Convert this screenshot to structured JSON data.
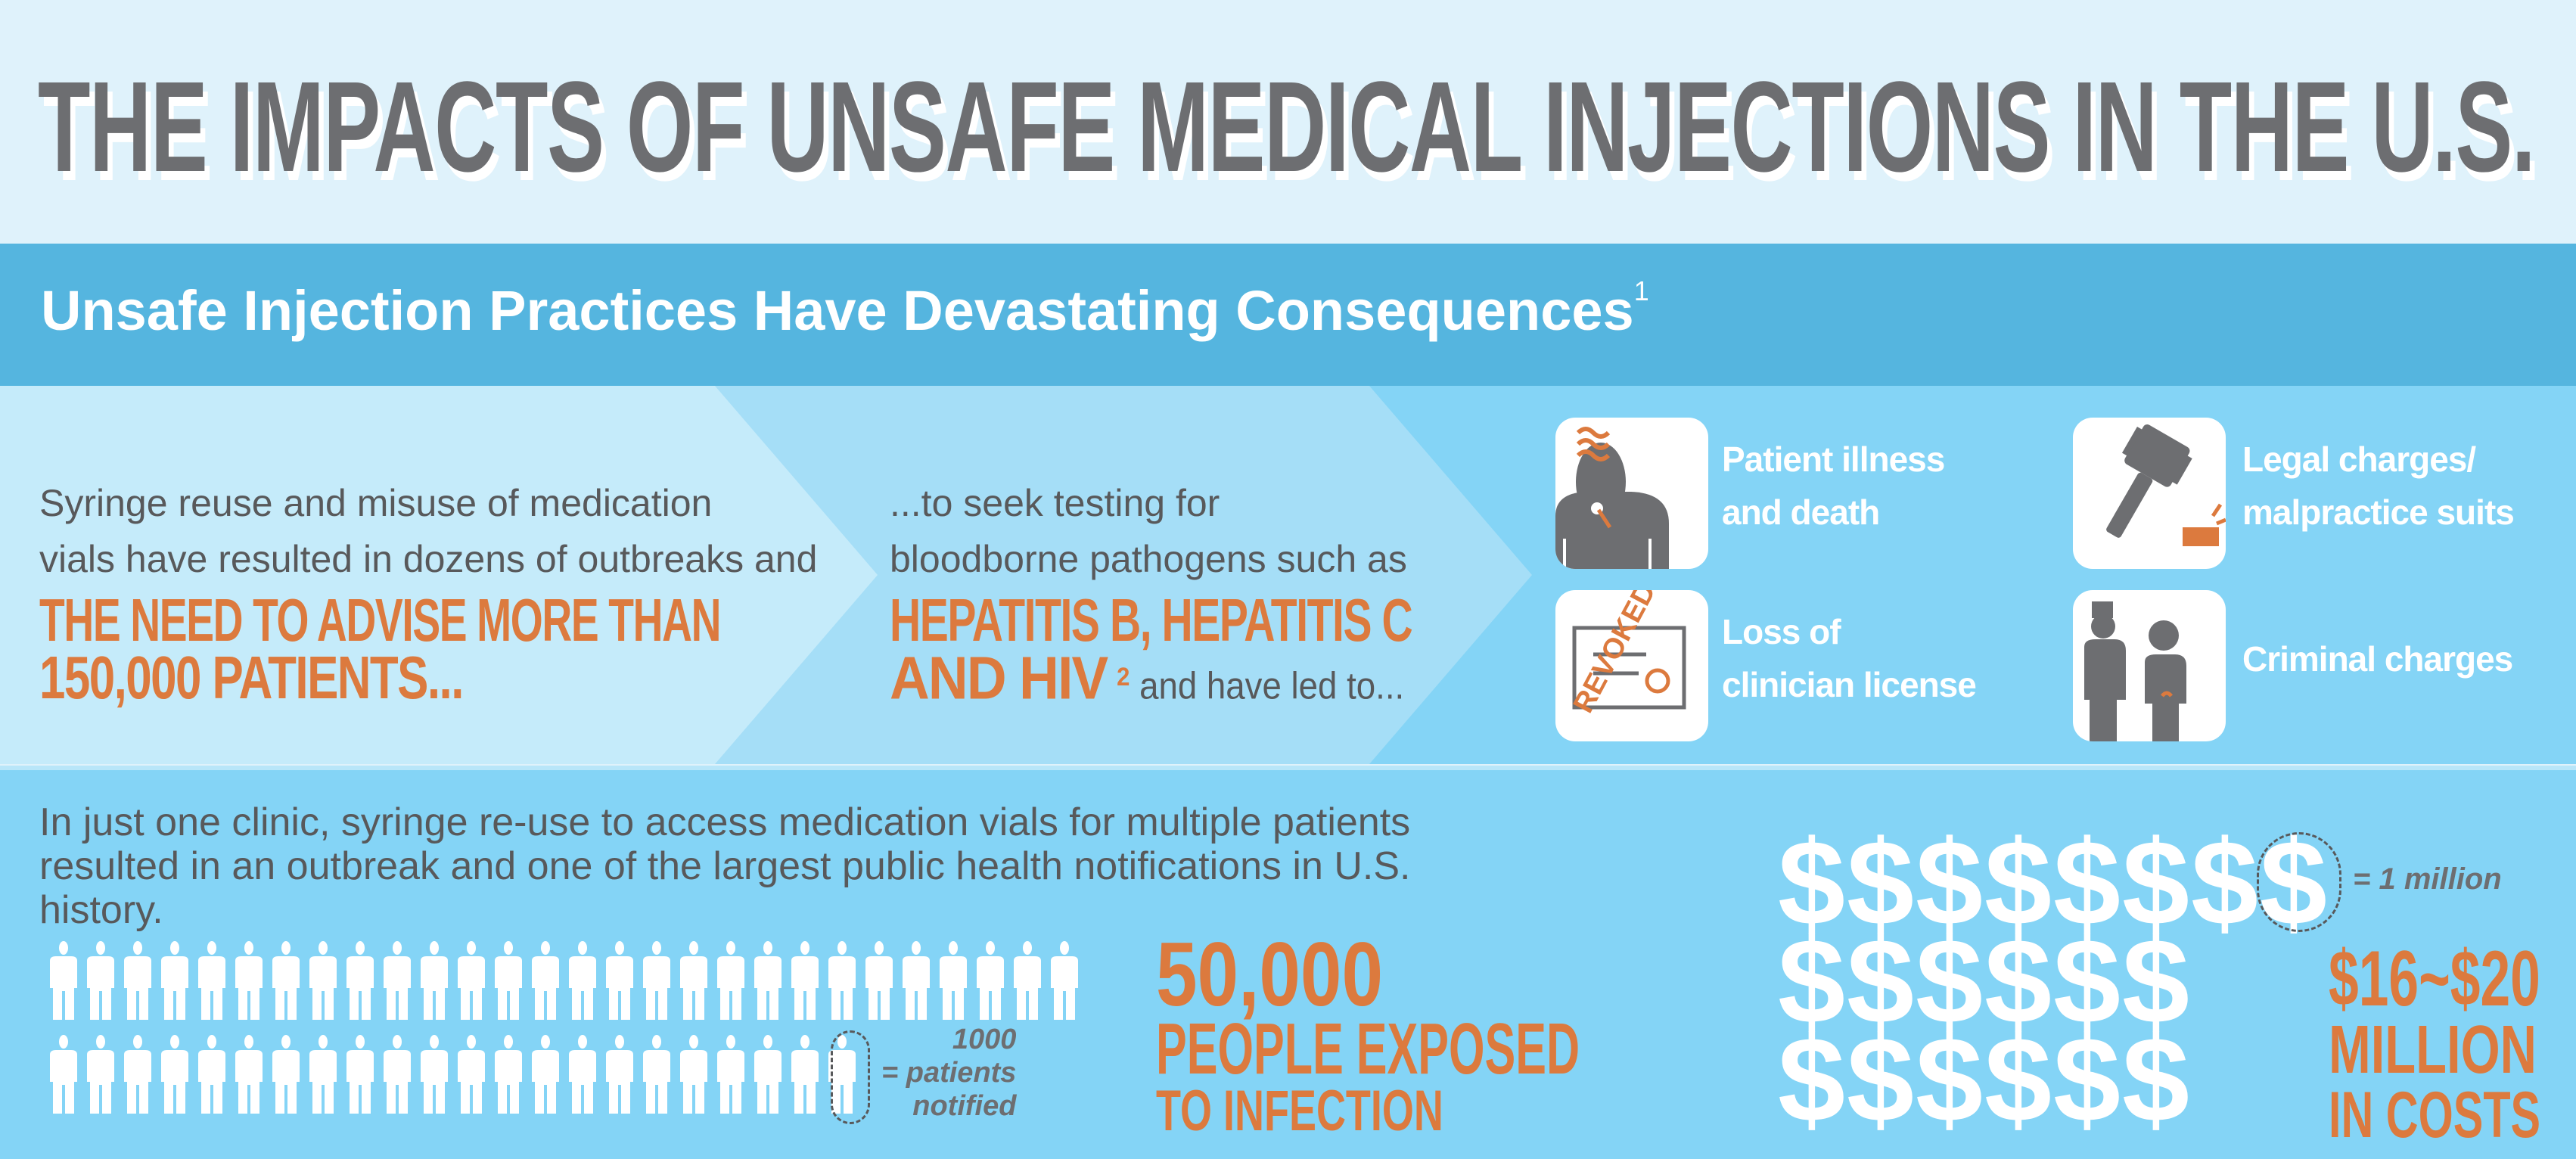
{
  "header": {
    "title": "THE IMPACTS OF UNSAFE MEDICAL INJECTIONS IN THE U.S."
  },
  "banner": {
    "subtitle": "Unsafe Injection Practices Have Devastating Consequences",
    "footnote": "1"
  },
  "step1": {
    "lines": [
      "Syringe reuse and misuse of medication",
      "vials have resulted in dozens of outbreaks and"
    ],
    "highlight": [
      "THE NEED TO ADVISE MORE THAN",
      "150,000 PATIENTS..."
    ]
  },
  "step2": {
    "lines": [
      "...to seek testing for",
      "bloodborne pathogens such as"
    ],
    "highlight": [
      "HEPATITIS B, HEPATITIS C",
      "AND HIV"
    ],
    "footnote": "2",
    "tail": " and have led to..."
  },
  "consequences": [
    {
      "icon": "sick-patient-icon",
      "label": [
        "Patient illness",
        "and death"
      ]
    },
    {
      "icon": "gavel-icon",
      "label": [
        "Legal charges/",
        "malpractice suits"
      ]
    },
    {
      "icon": "revoked-license-icon",
      "label": [
        "Loss of",
        "clinician license"
      ],
      "stamp": "REVOKED"
    },
    {
      "icon": "police-arrest-icon",
      "label": [
        "Criminal charges"
      ]
    }
  ],
  "outbreak": {
    "lines": [
      "In just one clinic, syringe re-use to access medication vials for multiple patients",
      "resulted in an outbreak and one of the largest public health notifications in U.S.",
      "history."
    ],
    "people_count": 50,
    "people_unit": 1000,
    "legend": [
      "1000",
      "= patients",
      "notified"
    ],
    "stat_number": "50,000",
    "stat_line1": "PEOPLE EXPOSED",
    "stat_line2": "TO INFECTION"
  },
  "costs": {
    "dollar_count": 20,
    "dollar_rows": [
      8,
      6,
      6
    ],
    "legend": "= 1 million",
    "range": "$16~$20",
    "line1": "MILLION",
    "line2": "IN COSTS"
  },
  "colors": {
    "orange": "#dc7a3e",
    "gray": "#6d6e71",
    "band": "#55b5df",
    "panel": "#84d4f6"
  }
}
